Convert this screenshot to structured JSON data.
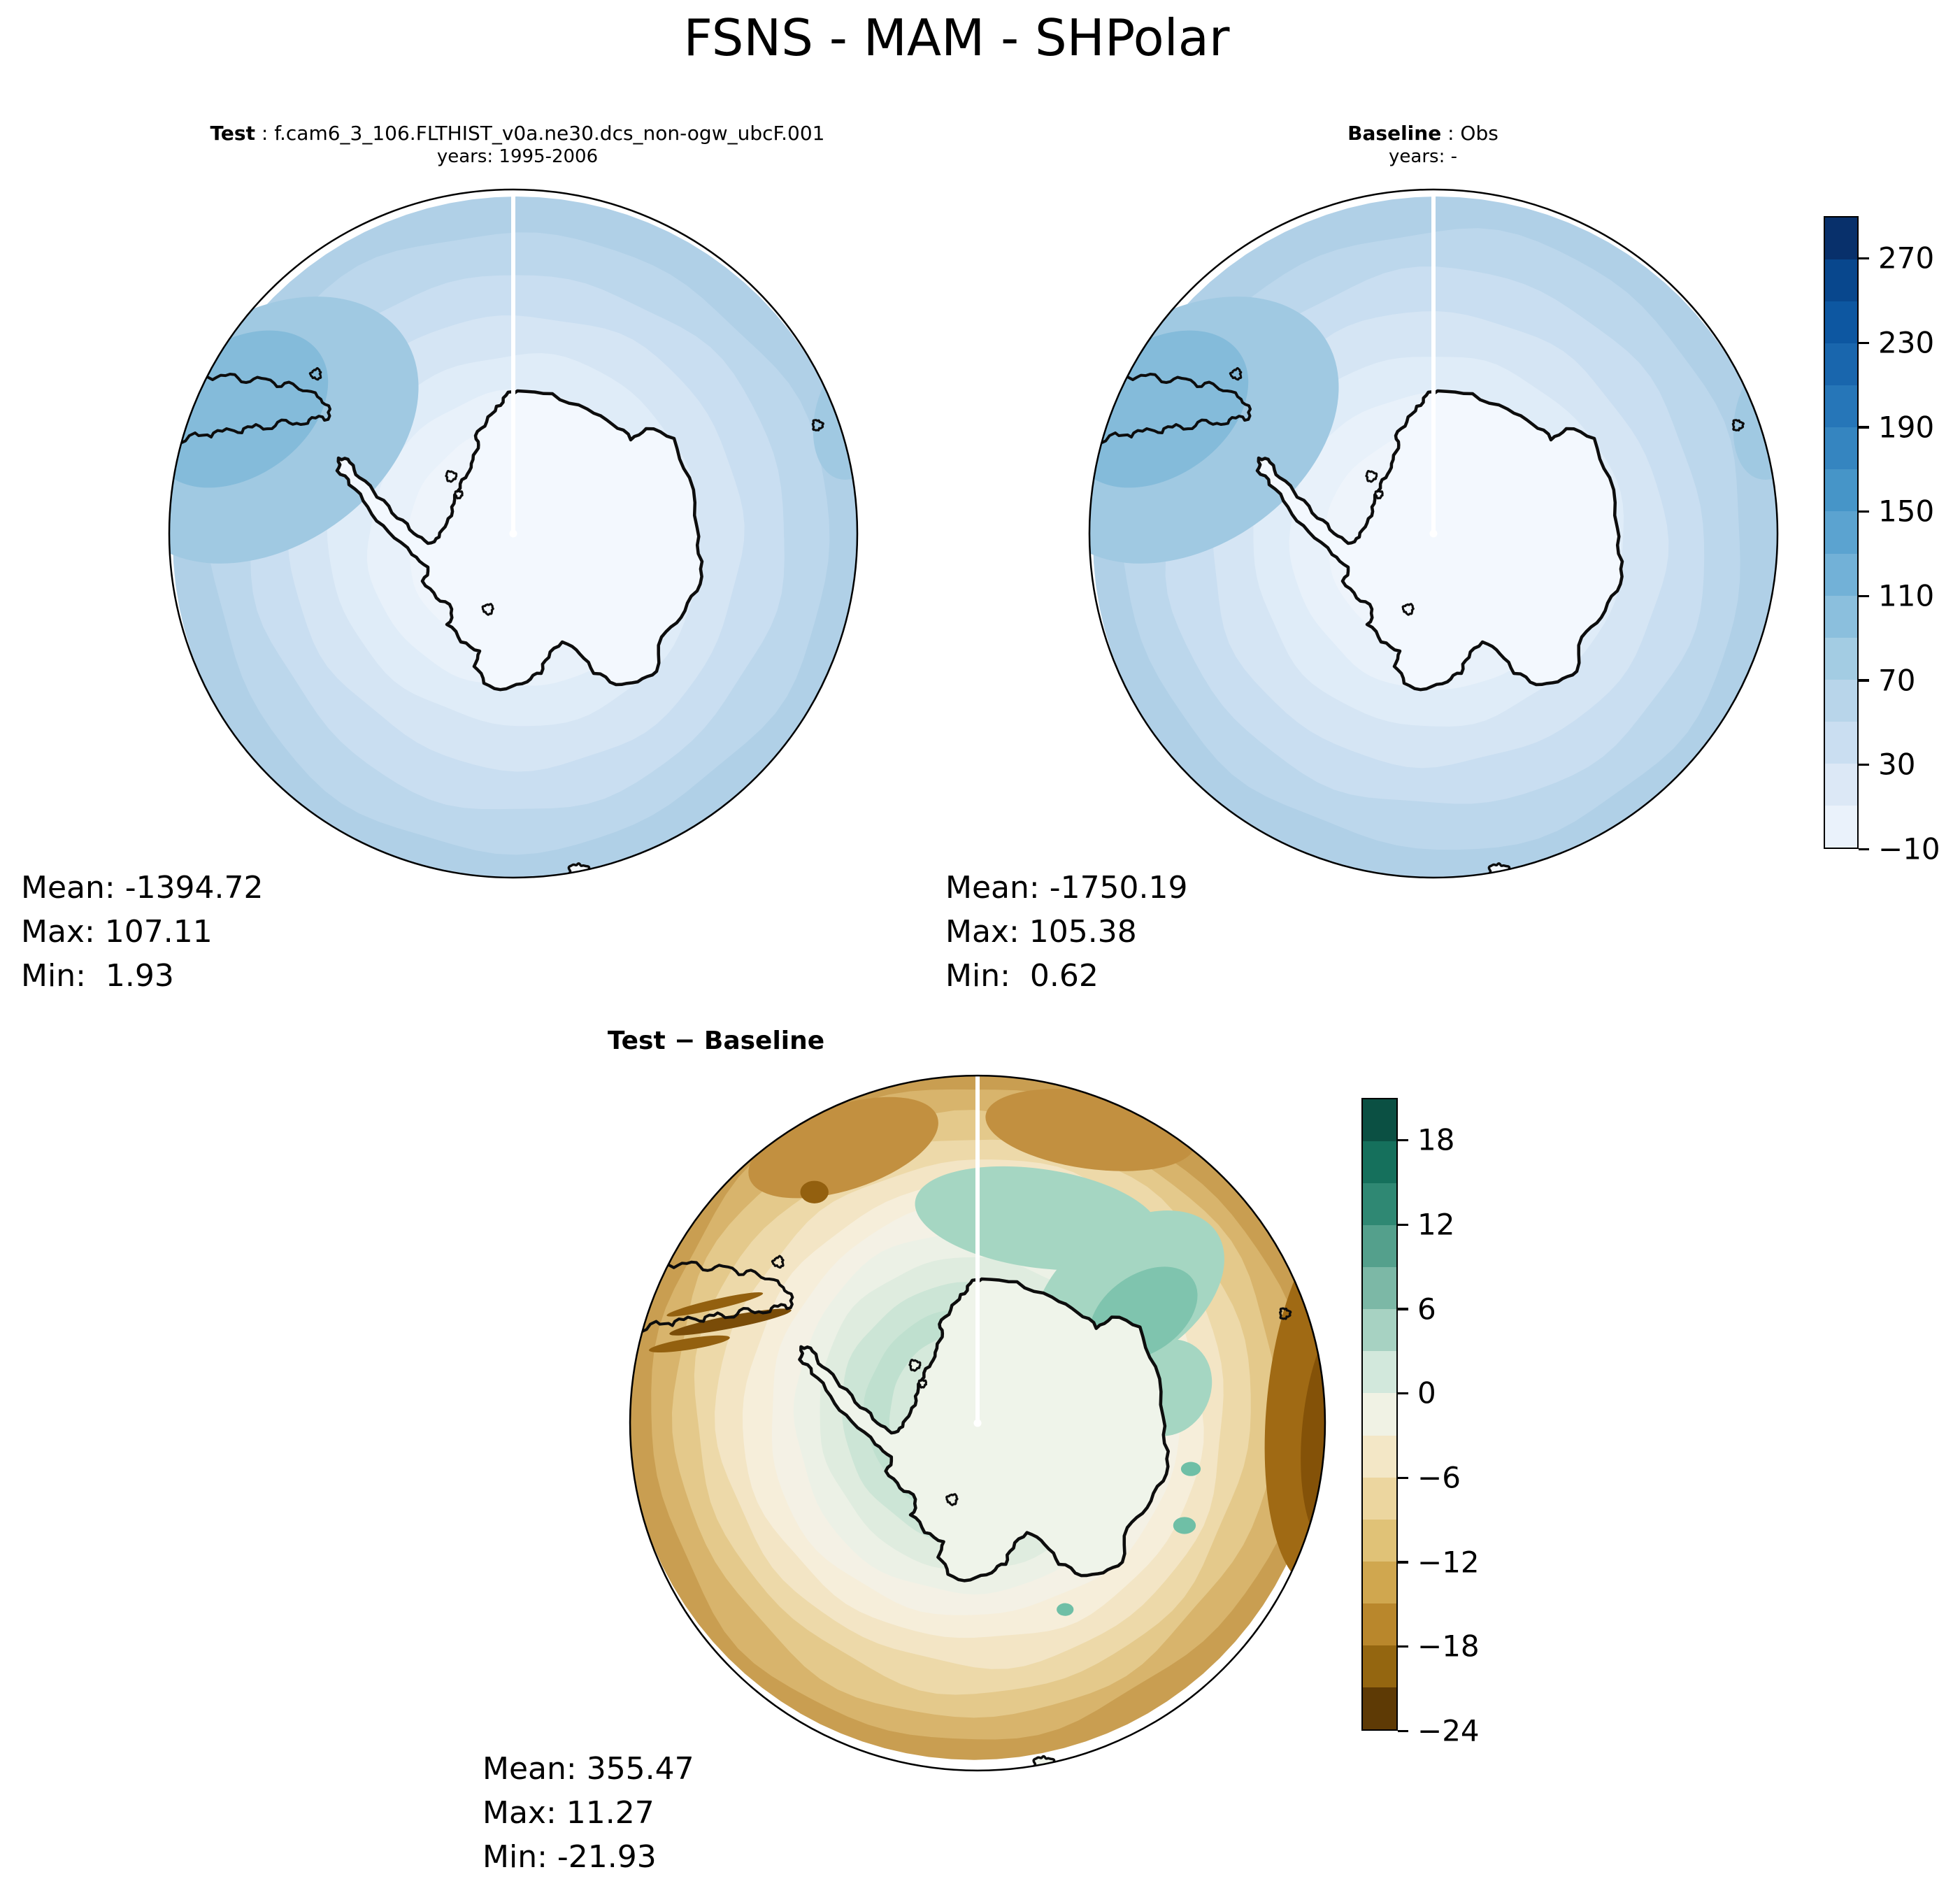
{
  "title": "FSNS - MAM - SHPolar",
  "panels": {
    "test": {
      "label": "Test",
      "title_rest": " : f.cam6_3_106.FLTHIST_v0a.ne30.dcs_non-ogw_ubcF.001",
      "years": "years: 1995-2006",
      "stats": {
        "mean": "Mean: -1394.72",
        "max": "Max: 107.11",
        "min": "Min:  1.93"
      }
    },
    "baseline": {
      "label": "Baseline",
      "title_rest": " : Obs",
      "years": "years: -",
      "stats": {
        "mean": "Mean: -1750.19",
        "max": "Max: 105.38",
        "min": "Min:  0.62"
      }
    },
    "diff": {
      "label": "Test − Baseline",
      "stats": {
        "mean": "Mean: 355.47",
        "max": "Max: 11.27",
        "min": "Min: -21.93"
      }
    }
  },
  "colorbars": {
    "levels": {
      "tick_labels": [
        "270",
        "230",
        "190",
        "150",
        "110",
        "70",
        "30",
        "−10"
      ],
      "tick_values": [
        270,
        230,
        190,
        150,
        110,
        70,
        30,
        -10
      ],
      "vmin": -10,
      "vmax": 290,
      "colors_top_to_bottom": [
        "#08306b",
        "#08478d",
        "#0d57a1",
        "#1966ad",
        "#2676b8",
        "#3585c0",
        "#4695c8",
        "#5ba3d0",
        "#72b1d7",
        "#8bbfdd",
        "#a3cce3",
        "#b8d5ea",
        "#cadef1",
        "#dce8f6",
        "#eaf2fb"
      ]
    },
    "diff": {
      "tick_labels": [
        "18",
        "12",
        "6",
        "0",
        "−6",
        "−12",
        "−18",
        "−24"
      ],
      "tick_values": [
        18,
        12,
        6,
        0,
        -6,
        -12,
        -18,
        -24
      ],
      "vmin": -24,
      "vmax": 21,
      "colors_top_to_bottom": [
        "#0b5043",
        "#15705c",
        "#2f8873",
        "#54a08c",
        "#7cb8a6",
        "#a7d2c2",
        "#d2e8dc",
        "#f0f2e4",
        "#f3e7c6",
        "#ecd69f",
        "#e0c277",
        "#d0a74f",
        "#b9872c",
        "#946610",
        "#5e3a05"
      ]
    }
  },
  "map_colors": {
    "test": {
      "rings": [
        "#b0d0e7",
        "#bcd7ec",
        "#c9def1",
        "#d5e5f4",
        "#dfecf8",
        "#e8f1fa",
        "#eef4fb"
      ],
      "land": "#f3f8fe",
      "accents": {
        "accent_mid": "#a0c9e2",
        "accent_dark": "#84bbda"
      }
    },
    "baseline": {
      "rings": [
        "#b0d0e7",
        "#bcd7ec",
        "#c9def1",
        "#d5e5f4",
        "#dfecf8",
        "#e8f1fa",
        "#eef4fb"
      ],
      "land": "#f3f8fe",
      "accents": {
        "accent_mid": "#a0c9e2",
        "accent_dark": "#84bbda"
      }
    },
    "diff": {
      "rings": [
        "#c99e51",
        "#d8b46c",
        "#e4c98b",
        "#edd9a9",
        "#f3e5c5",
        "#f6eeda",
        "#f4f1e5",
        "#ecf1e6",
        "#dfecdf",
        "#cce5d6",
        "#bfe0cf",
        "#d5e9db"
      ],
      "land": "#eff4ea",
      "accents": {
        "teal1": "#a5d6c2",
        "teal2": "#7fc4ae",
        "teal3": "#6fbfa6",
        "brown1": "#a06a14",
        "brown2": "#845208",
        "brown3": "#c29040",
        "brown4": "#93600f",
        "streak": "#7a4c08"
      }
    }
  },
  "chart_data": [
    {
      "type": "heatmap",
      "subtype": "south-polar-stereographic-contour-map",
      "panel": "Test",
      "variable": "FSNS",
      "season": "MAM",
      "region": "SHPolar",
      "source": "f.cam6_3_106.FLTHIST_v0a.ne30.dcs_non-ogw_ubcF.001",
      "years": "1995-2006",
      "stats": {
        "mean": -1394.72,
        "max": 107.11,
        "min": 1.93
      },
      "colorbar": {
        "colormap": "Blues",
        "vmin": -10,
        "vmax": 290,
        "step": 20,
        "tick_values": [
          270,
          230,
          190,
          150,
          110,
          70,
          30,
          -10
        ]
      }
    },
    {
      "type": "heatmap",
      "subtype": "south-polar-stereographic-contour-map",
      "panel": "Baseline",
      "variable": "FSNS",
      "season": "MAM",
      "region": "SHPolar",
      "source": "Obs",
      "years": "-",
      "stats": {
        "mean": -1750.19,
        "max": 105.38,
        "min": 0.62
      },
      "colorbar": {
        "colormap": "Blues",
        "vmin": -10,
        "vmax": 290,
        "step": 20,
        "tick_values": [
          270,
          230,
          190,
          150,
          110,
          70,
          30,
          -10
        ]
      }
    },
    {
      "type": "heatmap",
      "subtype": "south-polar-stereographic-contour-map",
      "panel": "Test − Baseline",
      "variable": "FSNS",
      "season": "MAM",
      "region": "SHPolar",
      "stats": {
        "mean": 355.47,
        "max": 11.27,
        "min": -21.93
      },
      "colorbar": {
        "colormap": "BrBG",
        "vmin": -24,
        "vmax": 21,
        "step": 3,
        "tick_values": [
          18,
          12,
          6,
          0,
          -6,
          -12,
          -18,
          -24
        ]
      }
    }
  ]
}
